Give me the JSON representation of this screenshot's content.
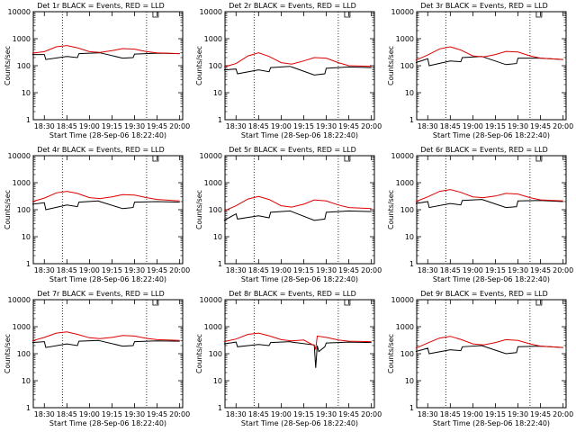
{
  "chart_data": [
    {
      "type": "line",
      "title": "Det 1r BLACK = Events, RED = LLD",
      "xlabel": "Start Time (28-Sep-06 18:22:40)",
      "ylabel": "Counts/sec",
      "xticks": [
        "18:30",
        "18:45",
        "19:00",
        "19:15",
        "19:30",
        "19:45",
        "20:00"
      ],
      "yticks": [
        "1",
        "10",
        "100",
        "1000",
        "10000"
      ],
      "xlim": [
        "18:22:40",
        "20:02"
      ],
      "ylim": [
        1,
        10000
      ],
      "yscale": "log",
      "vlines": [
        "18:42",
        "19:38"
      ],
      "marker": "19:44",
      "series": [
        {
          "color": "#000000",
          "x": [
            "18:22",
            "18:30",
            "18:31",
            "18:45",
            "18:52",
            "18:53",
            "19:06",
            "19:07",
            "19:22",
            "19:29",
            "19:30",
            "19:45",
            "20:00"
          ],
          "y": [
            260,
            260,
            170,
            220,
            200,
            280,
            300,
            300,
            190,
            200,
            270,
            290,
            280
          ]
        },
        {
          "color": "#dd0000",
          "x": [
            "18:22",
            "18:30",
            "18:38",
            "18:45",
            "18:52",
            "19:00",
            "19:07",
            "19:15",
            "19:22",
            "19:30",
            "19:38",
            "19:45",
            "20:00"
          ],
          "y": [
            290,
            330,
            500,
            560,
            460,
            330,
            310,
            360,
            430,
            410,
            330,
            300,
            280
          ]
        }
      ]
    },
    {
      "type": "line",
      "title": "Det 2r BLACK = Events, RED = LLD",
      "xlabel": "Start Time (28-Sep-06 18:22:40)",
      "ylabel": "Counts/sec",
      "xticks": [
        "18:30",
        "18:45",
        "19:00",
        "19:15",
        "19:30",
        "19:45",
        "20:00"
      ],
      "yticks": [
        "1",
        "10",
        "100",
        "1000",
        "10000"
      ],
      "xlim": [
        "18:22:40",
        "20:02"
      ],
      "ylim": [
        1,
        10000
      ],
      "yscale": "log",
      "vlines": [
        "18:42",
        "19:38"
      ],
      "marker": "19:44",
      "series": [
        {
          "color": "#000000",
          "x": [
            "18:22",
            "18:30",
            "18:31",
            "18:45",
            "18:52",
            "18:53",
            "19:06",
            "19:07",
            "19:22",
            "19:29",
            "19:30",
            "19:45",
            "20:00"
          ],
          "y": [
            70,
            75,
            50,
            70,
            60,
            85,
            95,
            90,
            45,
            50,
            80,
            90,
            85
          ]
        },
        {
          "color": "#dd0000",
          "x": [
            "18:22",
            "18:30",
            "18:38",
            "18:45",
            "18:52",
            "19:00",
            "19:07",
            "19:15",
            "19:22",
            "19:30",
            "19:38",
            "19:45",
            "20:00"
          ],
          "y": [
            90,
            120,
            230,
            300,
            220,
            130,
            115,
            150,
            200,
            190,
            130,
            100,
            95
          ]
        }
      ]
    },
    {
      "type": "line",
      "title": "Det 3r BLACK = Events, RED = LLD",
      "xlabel": "Start Time (28-Sep-06 18:22:40)",
      "ylabel": "Counts/sec",
      "xticks": [
        "18:30",
        "18:45",
        "19:00",
        "19:15",
        "19:30",
        "19:45",
        "20:00"
      ],
      "yticks": [
        "1",
        "10",
        "100",
        "1000",
        "10000"
      ],
      "xlim": [
        "18:22:40",
        "20:02"
      ],
      "ylim": [
        1,
        10000
      ],
      "yscale": "log",
      "vlines": [
        "18:42",
        "19:38"
      ],
      "marker": "19:44",
      "series": [
        {
          "color": "#000000",
          "x": [
            "18:22",
            "18:30",
            "18:31",
            "18:45",
            "18:52",
            "18:53",
            "19:06",
            "19:07",
            "19:22",
            "19:29",
            "19:30",
            "19:45",
            "20:00"
          ],
          "y": [
            130,
            180,
            100,
            150,
            140,
            200,
            220,
            210,
            110,
            120,
            190,
            190,
            170
          ]
        },
        {
          "color": "#dd0000",
          "x": [
            "18:22",
            "18:30",
            "18:38",
            "18:45",
            "18:52",
            "19:00",
            "19:07",
            "19:15",
            "19:22",
            "19:30",
            "19:38",
            "19:45",
            "20:00"
          ],
          "y": [
            160,
            250,
            420,
            500,
            380,
            230,
            210,
            260,
            340,
            320,
            230,
            190,
            170
          ]
        }
      ]
    },
    {
      "type": "line",
      "title": "Det 4r BLACK = Events, RED = LLD",
      "xlabel": "Start Time (28-Sep-06 18:22:40)",
      "ylabel": "Counts/sec",
      "xticks": [
        "18:30",
        "18:45",
        "19:00",
        "19:15",
        "19:30",
        "19:45",
        "20:00"
      ],
      "yticks": [
        "1",
        "10",
        "100",
        "1000",
        "10000"
      ],
      "xlim": [
        "18:22:40",
        "20:02"
      ],
      "ylim": [
        1,
        10000
      ],
      "yscale": "log",
      "vlines": [
        "18:42",
        "19:38"
      ],
      "marker": "19:44",
      "series": [
        {
          "color": "#000000",
          "x": [
            "18:22",
            "18:30",
            "18:31",
            "18:45",
            "18:52",
            "18:53",
            "19:06",
            "19:07",
            "19:22",
            "19:29",
            "19:30",
            "19:45",
            "20:00"
          ],
          "y": [
            160,
            180,
            100,
            150,
            130,
            190,
            210,
            200,
            110,
            120,
            190,
            200,
            190
          ]
        },
        {
          "color": "#dd0000",
          "x": [
            "18:22",
            "18:30",
            "18:38",
            "18:45",
            "18:52",
            "19:00",
            "19:07",
            "19:15",
            "19:22",
            "19:30",
            "19:38",
            "19:45",
            "20:00"
          ],
          "y": [
            200,
            270,
            420,
            480,
            400,
            280,
            260,
            300,
            360,
            350,
            280,
            240,
            210
          ]
        }
      ]
    },
    {
      "type": "line",
      "title": "Det 5r BLACK = Events, RED = LLD",
      "xlabel": "Start Time (28-Sep-06 18:22:40)",
      "ylabel": "Counts/sec",
      "xticks": [
        "18:30",
        "18:45",
        "19:00",
        "19:15",
        "19:30",
        "19:45",
        "20:00"
      ],
      "yticks": [
        "1",
        "10",
        "100",
        "1000",
        "10000"
      ],
      "xlim": [
        "18:22:40",
        "20:02"
      ],
      "ylim": [
        1,
        10000
      ],
      "yscale": "log",
      "vlines": [
        "18:42",
        "19:38"
      ],
      "marker": "19:44",
      "series": [
        {
          "color": "#000000",
          "x": [
            "18:22",
            "18:30",
            "18:31",
            "18:45",
            "18:52",
            "18:53",
            "19:06",
            "19:07",
            "19:22",
            "19:29",
            "19:30",
            "19:45",
            "20:00"
          ],
          "y": [
            40,
            70,
            45,
            60,
            50,
            80,
            90,
            85,
            40,
            45,
            80,
            90,
            85
          ]
        },
        {
          "color": "#dd0000",
          "x": [
            "18:22",
            "18:30",
            "18:38",
            "18:45",
            "18:52",
            "19:00",
            "19:07",
            "19:15",
            "19:22",
            "19:30",
            "19:38",
            "19:45",
            "20:00"
          ],
          "y": [
            90,
            140,
            250,
            310,
            240,
            140,
            125,
            160,
            230,
            210,
            150,
            120,
            110
          ]
        }
      ]
    },
    {
      "type": "line",
      "title": "Det 6r BLACK = Events, RED = LLD",
      "xlabel": "Start Time (28-Sep-06 18:22:40)",
      "ylabel": "Counts/sec",
      "xticks": [
        "18:30",
        "18:45",
        "19:00",
        "19:15",
        "19:30",
        "19:45",
        "20:00"
      ],
      "yticks": [
        "1",
        "10",
        "100",
        "1000",
        "10000"
      ],
      "xlim": [
        "18:22:40",
        "20:02"
      ],
      "ylim": [
        1,
        10000
      ],
      "yscale": "log",
      "vlines": [
        "18:42",
        "19:38"
      ],
      "marker": "19:44",
      "series": [
        {
          "color": "#000000",
          "x": [
            "18:22",
            "18:30",
            "18:31",
            "18:45",
            "18:52",
            "18:53",
            "19:06",
            "19:07",
            "19:22",
            "19:29",
            "19:30",
            "19:45",
            "20:00"
          ],
          "y": [
            170,
            200,
            120,
            170,
            150,
            220,
            240,
            230,
            120,
            130,
            210,
            220,
            200
          ]
        },
        {
          "color": "#dd0000",
          "x": [
            "18:22",
            "18:30",
            "18:38",
            "18:45",
            "18:52",
            "19:00",
            "19:07",
            "19:15",
            "19:22",
            "19:30",
            "19:38",
            "19:45",
            "20:00"
          ],
          "y": [
            200,
            300,
            480,
            560,
            440,
            300,
            280,
            320,
            400,
            380,
            280,
            230,
            210
          ]
        }
      ]
    },
    {
      "type": "line",
      "title": "Det 7r BLACK = Events, RED = LLD",
      "xlabel": "Start Time (28-Sep-06 18:22:40)",
      "ylabel": "Counts/sec",
      "xticks": [
        "18:30",
        "18:45",
        "19:00",
        "19:15",
        "19:30",
        "19:45",
        "20:00"
      ],
      "yticks": [
        "1",
        "10",
        "100",
        "1000",
        "10000"
      ],
      "xlim": [
        "18:22:40",
        "20:02"
      ],
      "ylim": [
        1,
        10000
      ],
      "yscale": "log",
      "vlines": [
        "18:42",
        "19:38"
      ],
      "marker": "19:44",
      "series": [
        {
          "color": "#000000",
          "x": [
            "18:22",
            "18:30",
            "18:31",
            "18:45",
            "18:52",
            "18:53",
            "19:06",
            "19:07",
            "19:22",
            "19:29",
            "19:30",
            "19:45",
            "20:00"
          ],
          "y": [
            260,
            280,
            170,
            230,
            200,
            290,
            310,
            300,
            190,
            200,
            280,
            300,
            290
          ]
        },
        {
          "color": "#dd0000",
          "x": [
            "18:22",
            "18:30",
            "18:38",
            "18:45",
            "18:52",
            "19:00",
            "19:07",
            "19:15",
            "19:22",
            "19:30",
            "19:38",
            "19:45",
            "20:00"
          ],
          "y": [
            300,
            400,
            580,
            640,
            520,
            390,
            360,
            400,
            470,
            450,
            370,
            330,
            310
          ]
        }
      ]
    },
    {
      "type": "line",
      "title": "Det 8r BLACK = Events, RED = LLD",
      "xlabel": "Start Time (28-Sep-06 18:22:40)",
      "ylabel": "Counts/sec",
      "xticks": [
        "18:30",
        "18:45",
        "19:00",
        "19:15",
        "19:30",
        "19:45",
        "20:00"
      ],
      "yticks": [
        "1",
        "10",
        "100",
        "1000",
        "10000"
      ],
      "xlim": [
        "18:22:40",
        "20:02"
      ],
      "ylim": [
        1,
        10000
      ],
      "yscale": "log",
      "vlines": [
        "18:42",
        "19:38"
      ],
      "marker": "19:44",
      "series": [
        {
          "color": "#000000",
          "x": [
            "18:22",
            "18:30",
            "18:31",
            "18:45",
            "18:52",
            "18:53",
            "19:06",
            "19:07",
            "19:22",
            "19:23",
            "19:24",
            "19:25",
            "19:29",
            "19:30",
            "19:45",
            "20:00"
          ],
          "y": [
            230,
            270,
            180,
            220,
            200,
            260,
            280,
            270,
            210,
            30,
            200,
            120,
            180,
            250,
            270,
            260
          ]
        },
        {
          "color": "#dd0000",
          "x": [
            "18:22",
            "18:30",
            "18:38",
            "18:45",
            "18:52",
            "19:00",
            "19:07",
            "19:15",
            "19:22",
            "19:23",
            "19:24",
            "19:30",
            "19:38",
            "19:45",
            "20:00"
          ],
          "y": [
            280,
            350,
            520,
            580,
            460,
            330,
            300,
            320,
            200,
            150,
            450,
            400,
            320,
            290,
            280
          ]
        }
      ]
    },
    {
      "type": "line",
      "title": "Det 9r BLACK = Events, RED = LLD",
      "xlabel": "Start Time (28-Sep-06 18:22:40)",
      "ylabel": "Counts/sec",
      "xticks": [
        "18:30",
        "18:45",
        "19:00",
        "19:15",
        "19:30",
        "19:45",
        "20:00"
      ],
      "yticks": [
        "1",
        "10",
        "100",
        "1000",
        "10000"
      ],
      "xlim": [
        "18:22:40",
        "20:02"
      ],
      "ylim": [
        1,
        10000
      ],
      "yscale": "log",
      "vlines": [
        "18:42",
        "19:38"
      ],
      "marker": "19:44",
      "series": [
        {
          "color": "#000000",
          "x": [
            "18:22",
            "18:30",
            "18:31",
            "18:45",
            "18:52",
            "18:53",
            "19:06",
            "19:07",
            "19:22",
            "19:29",
            "19:30",
            "19:45",
            "20:00"
          ],
          "y": [
            120,
            160,
            100,
            140,
            130,
            180,
            200,
            190,
            100,
            110,
            180,
            190,
            170
          ]
        },
        {
          "color": "#dd0000",
          "x": [
            "18:22",
            "18:30",
            "18:38",
            "18:45",
            "18:52",
            "19:00",
            "19:07",
            "19:15",
            "19:22",
            "19:30",
            "19:38",
            "19:45",
            "20:00"
          ],
          "y": [
            160,
            250,
            380,
            440,
            340,
            230,
            210,
            260,
            330,
            310,
            230,
            190,
            170
          ]
        }
      ]
    }
  ]
}
